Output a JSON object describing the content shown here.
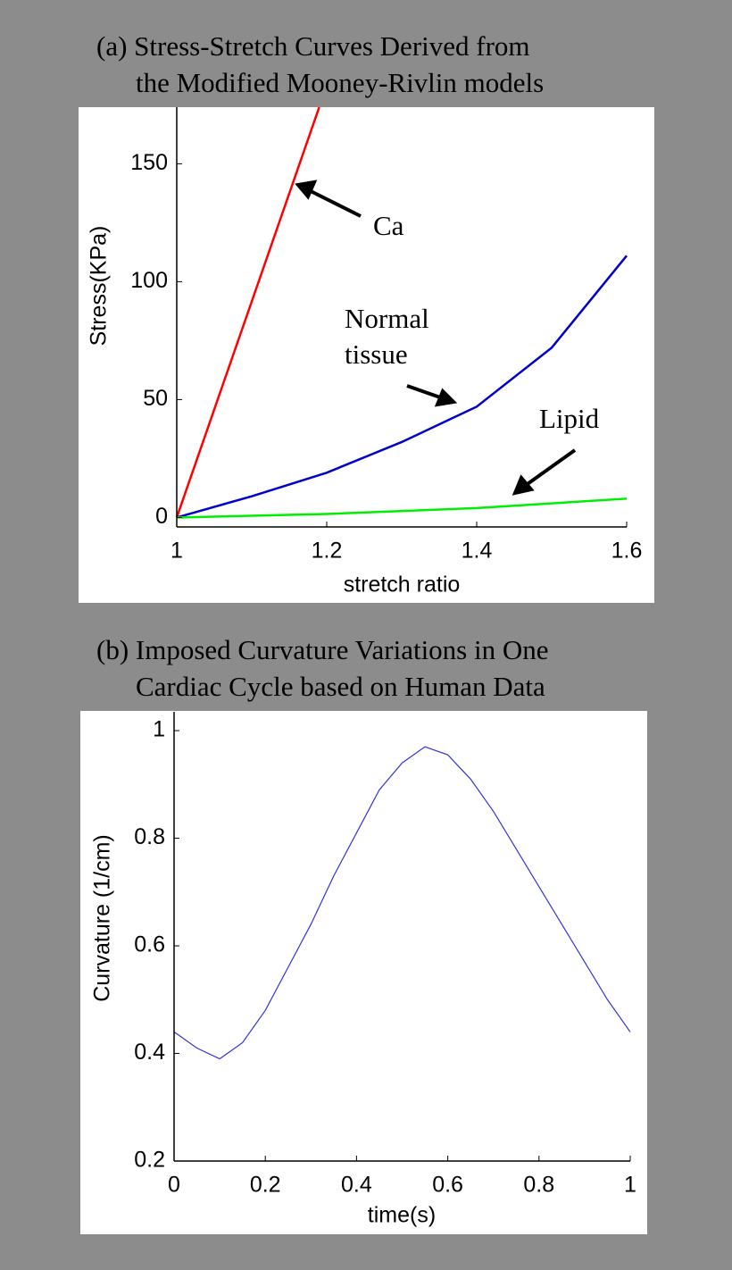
{
  "chart_data": [
    {
      "type": "line",
      "title": [
        "(a) Stress-Stretch Curves Derived from",
        "the Modified Mooney-Rivlin models"
      ],
      "xlabel": "stretch ratio",
      "ylabel": "Stress(KPa)",
      "xlim": [
        1,
        1.6
      ],
      "xticks": [
        1,
        1.2,
        1.4,
        1.6
      ],
      "ylim": [
        -4,
        174
      ],
      "yticks": [
        0,
        50,
        100,
        150
      ],
      "grid": false,
      "series": [
        {
          "name": "Ca",
          "color": "#ff0000",
          "x": [
            1,
            1.19
          ],
          "values": [
            0,
            174
          ]
        },
        {
          "name": "Normal tissue",
          "color": "#0000cc",
          "x": [
            1,
            1.1,
            1.2,
            1.3,
            1.4,
            1.5,
            1.6
          ],
          "values": [
            0,
            9,
            19,
            32,
            47,
            72,
            111
          ]
        },
        {
          "name": "Lipid",
          "color": "#00ee00",
          "x": [
            1,
            1.2,
            1.4,
            1.6
          ],
          "values": [
            0,
            1.5,
            4,
            8
          ]
        }
      ],
      "annotations": [
        "Ca",
        "Normal",
        "tissue",
        "Lipid"
      ]
    },
    {
      "type": "line",
      "title": [
        "(b) Imposed Curvature Variations in One",
        "Cardiac Cycle based on Human Data"
      ],
      "xlabel": "time(s)",
      "ylabel": "Curvature (1/cm)",
      "xlim": [
        0,
        1
      ],
      "xticks": [
        0,
        0.2,
        0.4,
        0.6,
        0.8,
        1
      ],
      "ylim": [
        0.2,
        1.035
      ],
      "yticks": [
        0.2,
        0.4,
        0.6,
        0.8,
        1
      ],
      "grid": false,
      "series": [
        {
          "color": "#3333dd",
          "x": [
            0,
            0.05,
            0.1,
            0.15,
            0.2,
            0.25,
            0.3,
            0.35,
            0.4,
            0.45,
            0.5,
            0.55,
            0.6,
            0.65,
            0.7,
            0.75,
            0.8,
            0.85,
            0.9,
            0.95,
            1
          ],
          "values": [
            0.44,
            0.41,
            0.39,
            0.42,
            0.48,
            0.56,
            0.64,
            0.73,
            0.81,
            0.89,
            0.94,
            0.97,
            0.955,
            0.91,
            0.85,
            0.78,
            0.71,
            0.64,
            0.57,
            0.5,
            0.44
          ]
        }
      ]
    }
  ]
}
